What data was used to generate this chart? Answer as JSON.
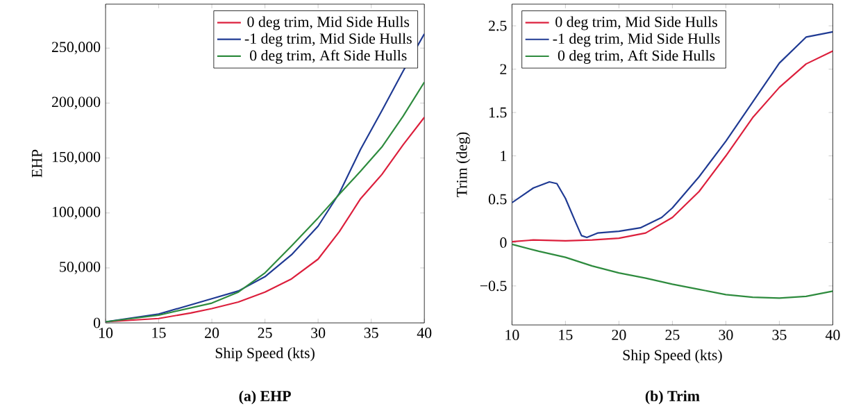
{
  "chart_data": [
    {
      "type": "line",
      "xlabel": "Ship Speed (kts)",
      "ylabel": "EHP",
      "annotations": [
        "(a) EHP"
      ],
      "legend": "top right",
      "xlim": [
        10,
        40
      ],
      "xticks": [
        10,
        15,
        20,
        25,
        30,
        35,
        40
      ],
      "ylim": [
        0,
        290000
      ],
      "yticks": [
        0,
        {
          "value": 50000,
          "label": "50,000"
        },
        {
          "value": 100000,
          "label": "100,000"
        },
        {
          "value": 150000,
          "label": "150,000"
        },
        {
          "value": 200000,
          "label": "200,000"
        },
        {
          "value": 250000,
          "label": "250,000"
        }
      ],
      "series": [
        {
          "name": "0 deg trim, Mid Side Hulls",
          "color": "#dc1f3c",
          "x": [
            10,
            15,
            18,
            20,
            22.5,
            25,
            27.5,
            30,
            32,
            34,
            36,
            38,
            40
          ],
          "values": [
            1000,
            4000,
            9000,
            13000,
            19000,
            28000,
            40000,
            58000,
            83000,
            113000,
            135000,
            162000,
            187000
          ]
        },
        {
          "name": "-1 deg trim, Mid Side Hulls",
          "color": "#1f3a93",
          "x": [
            10,
            15,
            20,
            22.5,
            25,
            27.5,
            30,
            32,
            34,
            36,
            38,
            40
          ],
          "values": [
            1000,
            8000,
            22000,
            29000,
            42000,
            62000,
            88000,
            118000,
            158000,
            193000,
            229000,
            263000
          ]
        },
        {
          "name": "0 deg trim, Aft Side Hulls",
          "color": "#2e8b3e",
          "x": [
            10,
            15,
            20,
            22.5,
            25,
            27.5,
            30,
            32,
            34,
            36,
            38,
            40
          ],
          "values": [
            1000,
            7000,
            18000,
            28000,
            45500,
            70000,
            95500,
            117000,
            138000,
            160000,
            188000,
            219000
          ]
        }
      ]
    },
    {
      "type": "line",
      "xlabel": "Ship Speed (kts)",
      "ylabel": "Trim (deg)",
      "annotations": [
        "(b) Trim"
      ],
      "legend": "top left",
      "xlim": [
        10,
        40
      ],
      "xticks": [
        10,
        15,
        20,
        25,
        30,
        35,
        40
      ],
      "ylim": [
        -0.95,
        2.75
      ],
      "yticks": [
        {
          "value": -0.5,
          "label": "−0.5"
        },
        0,
        0.5,
        1,
        1.5,
        2,
        2.5
      ],
      "series": [
        {
          "name": "0 deg trim, Mid Side Hulls",
          "color": "#dc1f3c",
          "x": [
            10,
            12,
            15,
            17.5,
            20,
            22.5,
            25,
            27.5,
            30,
            32.5,
            35,
            37.5,
            40
          ],
          "values": [
            0.01,
            0.03,
            0.02,
            0.03,
            0.05,
            0.11,
            0.29,
            0.59,
            1.0,
            1.44,
            1.79,
            2.06,
            2.21
          ]
        },
        {
          "name": "-1 deg trim, Mid Side Hulls",
          "color": "#1f3a93",
          "x": [
            10,
            12,
            13.5,
            14.2,
            15,
            16,
            16.5,
            17,
            18,
            20,
            22,
            24,
            25,
            27.5,
            30,
            32.5,
            35,
            37.5,
            40
          ],
          "values": [
            0.46,
            0.63,
            0.7,
            0.68,
            0.51,
            0.22,
            0.08,
            0.06,
            0.11,
            0.13,
            0.17,
            0.29,
            0.4,
            0.76,
            1.17,
            1.62,
            2.07,
            2.37,
            2.43
          ]
        },
        {
          "name": "0 deg trim, Aft Side Hulls",
          "color": "#2e8b3e",
          "x": [
            10,
            12.5,
            15,
            17.5,
            20,
            22.5,
            25,
            27.5,
            30,
            32.5,
            35,
            37.5,
            40
          ],
          "values": [
            -0.02,
            -0.1,
            -0.17,
            -0.27,
            -0.35,
            -0.41,
            -0.48,
            -0.54,
            -0.6,
            -0.63,
            -0.64,
            -0.62,
            -0.56
          ]
        }
      ]
    }
  ]
}
